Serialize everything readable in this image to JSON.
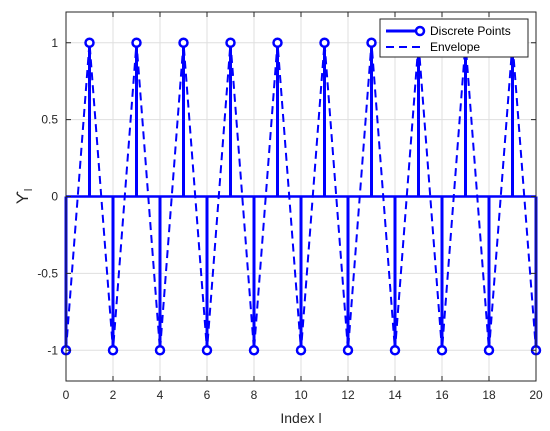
{
  "chart_data": {
    "type": "line",
    "title": "",
    "xlabel": "Index l",
    "ylabel_main": "ϒ",
    "ylabel_sub": "l",
    "xlim": [
      0,
      20
    ],
    "ylim": [
      -1.2,
      1.2
    ],
    "xticks": [
      0,
      2,
      4,
      6,
      8,
      10,
      12,
      14,
      16,
      18,
      20
    ],
    "xtick_labels": [
      "0",
      "2",
      "4",
      "6",
      "8",
      "10",
      "12",
      "14",
      "16",
      "18",
      "20"
    ],
    "yticks": [
      -1,
      -0.5,
      0,
      0.5,
      1
    ],
    "ytick_labels": [
      "-1",
      "-0.5",
      "0",
      "0.5",
      "1"
    ],
    "grid": true,
    "legend_position": "top-right",
    "x": [
      0,
      1,
      2,
      3,
      4,
      5,
      6,
      7,
      8,
      9,
      10,
      11,
      12,
      13,
      14,
      15,
      16,
      17,
      18,
      19,
      20
    ],
    "series": [
      {
        "name": "Discrete Points",
        "style": "stem",
        "color": "#0000ff",
        "values": [
          -1,
          1,
          -1,
          1,
          -1,
          1,
          -1,
          1,
          -1,
          1,
          -1,
          1,
          -1,
          1,
          -1,
          1,
          -1,
          1,
          -1,
          1,
          -1
        ]
      },
      {
        "name": "Envelope",
        "style": "dashed-line",
        "color": "#0000ff",
        "values": [
          -1,
          1,
          -1,
          1,
          -1,
          1,
          -1,
          1,
          -1,
          1,
          -1,
          1,
          -1,
          1,
          -1,
          1,
          -1,
          1,
          -1,
          1,
          -1
        ]
      }
    ]
  }
}
